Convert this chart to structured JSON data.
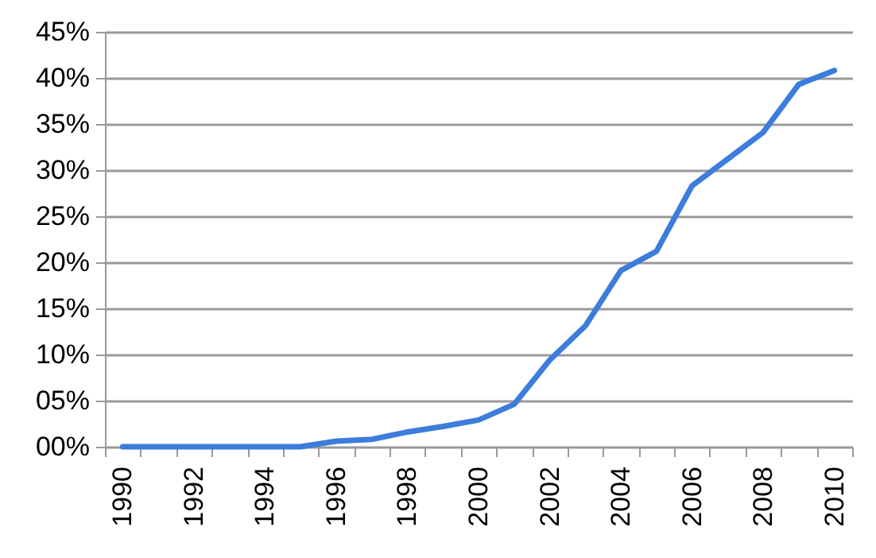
{
  "chart_data": {
    "type": "line",
    "categories": [
      "1990",
      null,
      "1992",
      null,
      "1994",
      null,
      "1996",
      null,
      "1998",
      null,
      "2000",
      null,
      "2002",
      null,
      "2004",
      null,
      "2006",
      null,
      "2008",
      null,
      "2010"
    ],
    "series": [
      {
        "color": "#3c7ddc",
        "values": [
          0,
          0,
          0,
          0,
          0,
          0,
          0.6,
          0.8,
          1.6,
          2.2,
          2.9,
          4.6,
          9.4,
          13.1,
          19.1,
          21.2,
          28.3,
          31.2,
          34.1,
          39.3,
          40.8
        ]
      }
    ],
    "ylim": [
      0,
      45
    ],
    "yticks": [
      {
        "value": 0,
        "label": "00%"
      },
      {
        "value": 5,
        "label": "05%"
      },
      {
        "value": 10,
        "label": "10%"
      },
      {
        "value": 15,
        "label": "15%"
      },
      {
        "value": 20,
        "label": "20%"
      },
      {
        "value": 25,
        "label": "25%"
      },
      {
        "value": 30,
        "label": "30%"
      },
      {
        "value": 35,
        "label": "35%"
      },
      {
        "value": 40,
        "label": "40%"
      },
      {
        "value": 45,
        "label": "45%"
      }
    ],
    "grid": "y"
  }
}
